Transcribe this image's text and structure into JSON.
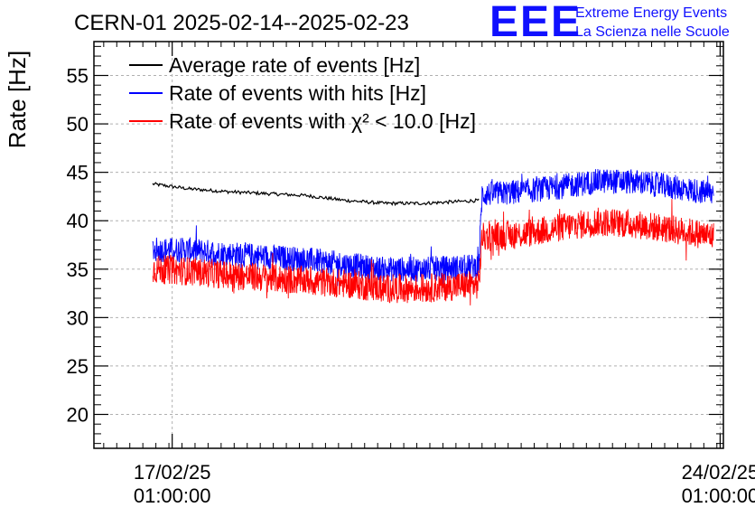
{
  "header": {
    "title": "CERN-01 2025-02-14--2025-02-23",
    "logo_letters": "EEE",
    "logo_line1": "Extreme Energy Events",
    "logo_line2": "La Scienza nelle Scuole"
  },
  "chart_data": {
    "type": "line",
    "title": "CERN-01 2025-02-14--2025-02-23",
    "ylabel": "Rate [Hz]",
    "xlabel": "",
    "ylim": [
      16.5,
      58.5
    ],
    "y_ticks": [
      20,
      25,
      30,
      35,
      40,
      45,
      50,
      55
    ],
    "xlim": [
      "2025-02-16T01:00:00",
      "2025-02-24T02:00:00"
    ],
    "x_ticks": [
      {
        "value": "2025-02-17T01:00:00",
        "label_date": "17/02/25",
        "label_time": "01:00:00"
      },
      {
        "value": "2025-02-24T01:00:00",
        "label_date": "24/02/25",
        "label_time": "01:00:00"
      }
    ],
    "grid": true,
    "legend_position": "top-left",
    "series": [
      {
        "name": "Average rate of events [Hz]",
        "color": "#000000",
        "points": [
          {
            "x": "2025-02-16T19:00:00",
            "y": 43.8
          },
          {
            "x": "2025-02-17T06:00:00",
            "y": 43.3
          },
          {
            "x": "2025-02-17T18:00:00",
            "y": 43.0
          },
          {
            "x": "2025-02-18T06:00:00",
            "y": 42.8
          },
          {
            "x": "2025-02-18T18:00:00",
            "y": 42.6
          },
          {
            "x": "2025-02-19T06:00:00",
            "y": 42.1
          },
          {
            "x": "2025-02-19T18:00:00",
            "y": 41.8
          },
          {
            "x": "2025-02-20T06:00:00",
            "y": 41.8
          },
          {
            "x": "2025-02-20T18:00:00",
            "y": 42.0
          },
          {
            "x": "2025-02-20T23:00:00",
            "y": 42.1
          }
        ]
      },
      {
        "name": "Rate of events with hits [Hz]",
        "color": "#0000ff",
        "points": [
          {
            "x": "2025-02-16T19:00:00",
            "y": 37.0
          },
          {
            "x": "2025-02-17T06:00:00",
            "y": 37.0
          },
          {
            "x": "2025-02-17T18:00:00",
            "y": 36.6
          },
          {
            "x": "2025-02-18T06:00:00",
            "y": 36.3
          },
          {
            "x": "2025-02-18T18:00:00",
            "y": 36.0
          },
          {
            "x": "2025-02-19T06:00:00",
            "y": 35.5
          },
          {
            "x": "2025-02-19T18:00:00",
            "y": 35.0
          },
          {
            "x": "2025-02-20T06:00:00",
            "y": 35.0
          },
          {
            "x": "2025-02-20T18:00:00",
            "y": 35.2
          },
          {
            "x": "2025-02-20T23:00:00",
            "y": 35.3
          },
          {
            "x": "2025-02-21T00:00:00",
            "y": 42.7
          },
          {
            "x": "2025-02-21T12:00:00",
            "y": 43.0
          },
          {
            "x": "2025-02-22T00:00:00",
            "y": 43.5
          },
          {
            "x": "2025-02-22T12:00:00",
            "y": 44.1
          },
          {
            "x": "2025-02-23T00:00:00",
            "y": 44.0
          },
          {
            "x": "2025-02-23T12:00:00",
            "y": 43.4
          },
          {
            "x": "2025-02-23T23:00:00",
            "y": 42.8
          }
        ],
        "noise_amplitude": 1.3
      },
      {
        "name": "Rate of events with χ² < 10.0 [Hz]",
        "color": "#ff0000",
        "points": [
          {
            "x": "2025-02-16T19:00:00",
            "y": 35.0
          },
          {
            "x": "2025-02-17T06:00:00",
            "y": 34.8
          },
          {
            "x": "2025-02-17T18:00:00",
            "y": 34.4
          },
          {
            "x": "2025-02-18T06:00:00",
            "y": 34.1
          },
          {
            "x": "2025-02-18T18:00:00",
            "y": 33.8
          },
          {
            "x": "2025-02-19T06:00:00",
            "y": 33.5
          },
          {
            "x": "2025-02-19T18:00:00",
            "y": 33.0
          },
          {
            "x": "2025-02-20T06:00:00",
            "y": 33.0
          },
          {
            "x": "2025-02-20T18:00:00",
            "y": 33.3
          },
          {
            "x": "2025-02-20T23:00:00",
            "y": 33.4
          },
          {
            "x": "2025-02-21T00:00:00",
            "y": 38.3
          },
          {
            "x": "2025-02-21T12:00:00",
            "y": 38.6
          },
          {
            "x": "2025-02-22T00:00:00",
            "y": 39.3
          },
          {
            "x": "2025-02-22T12:00:00",
            "y": 39.9
          },
          {
            "x": "2025-02-23T00:00:00",
            "y": 39.6
          },
          {
            "x": "2025-02-23T12:00:00",
            "y": 39.0
          },
          {
            "x": "2025-02-23T23:00:00",
            "y": 38.4
          }
        ],
        "noise_amplitude": 1.5
      }
    ]
  }
}
